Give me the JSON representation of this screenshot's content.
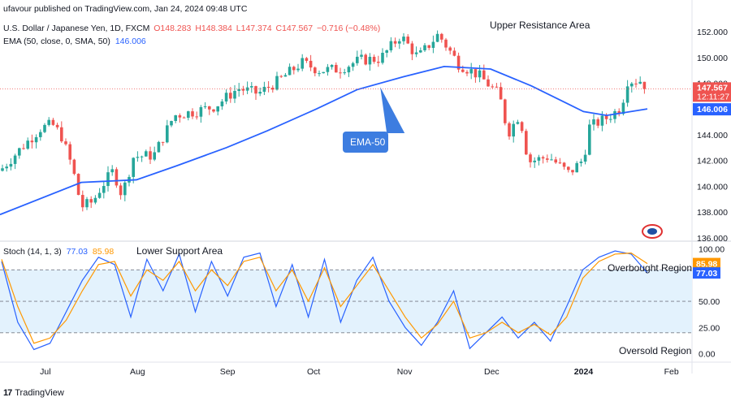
{
  "header": {
    "publisher": "ufavour published on TradingView.com, Jan 24, 2024 09:48 UTC",
    "symbol": "U.S. Dollar / Japanese Yen, 1D, FXCM",
    "open": "O148.283",
    "high": "H148.384",
    "low": "L147.374",
    "close": "C147.567",
    "change": "−0.716 (−0.48%)",
    "ema_legend": "EMA (50, close, 0, SMA, 50)",
    "ema_value": "146.006",
    "stoch_legend": "Stoch (14, 1, 3)",
    "stoch_k": "77.03",
    "stoch_d": "85.98"
  },
  "annotations": {
    "upper_resistance": "Upper Resistance Area",
    "lower_support": "Lower Support Area",
    "ema_callout": "EMA-50",
    "overbought": "Overbought Region",
    "oversold": "Oversold Region"
  },
  "price_labels": {
    "current": "147.567",
    "countdown": "12:11:27",
    "ema": "146.006"
  },
  "footer": {
    "brand": "TradingView"
  },
  "colors": {
    "up": "#26a69a",
    "down": "#ef5350",
    "ema": "#2962ff",
    "stoch_k": "#2962ff",
    "stoch_d": "#ff9800",
    "band": "#e3f2fd"
  },
  "chart_data": [
    {
      "type": "candlestick",
      "title": "U.S. Dollar / Japanese Yen, 1D, FXCM",
      "x_ticks": [
        "Jul",
        "Aug",
        "Sep",
        "Oct",
        "Nov",
        "Dec",
        "2024",
        "Feb"
      ],
      "y_ticks": [
        "152.000",
        "150.000",
        "148.000",
        "146.000",
        "144.000",
        "142.000",
        "140.000",
        "138.000",
        "136.000"
      ],
      "ylim": [
        135.8,
        153.2
      ],
      "close_series": [
        {
          "date": "2023-06-15",
          "close": 141.2
        },
        {
          "date": "2023-06-22",
          "close": 142.9
        },
        {
          "date": "2023-06-29",
          "close": 144.5
        },
        {
          "date": "2023-07-03",
          "close": 144.8
        },
        {
          "date": "2023-07-06",
          "close": 144.0
        },
        {
          "date": "2023-07-10",
          "close": 141.4
        },
        {
          "date": "2023-07-13",
          "close": 138.4
        },
        {
          "date": "2023-07-17",
          "close": 138.8
        },
        {
          "date": "2023-07-20",
          "close": 140.0
        },
        {
          "date": "2023-07-24",
          "close": 141.2
        },
        {
          "date": "2023-07-27",
          "close": 139.3
        },
        {
          "date": "2023-07-31",
          "close": 142.3
        },
        {
          "date": "2023-08-07",
          "close": 142.4
        },
        {
          "date": "2023-08-14",
          "close": 145.5
        },
        {
          "date": "2023-08-21",
          "close": 145.8
        },
        {
          "date": "2023-08-28",
          "close": 146.2
        },
        {
          "date": "2023-09-05",
          "close": 147.6
        },
        {
          "date": "2023-09-12",
          "close": 147.2
        },
        {
          "date": "2023-09-19",
          "close": 148.2
        },
        {
          "date": "2023-09-27",
          "close": 149.6
        },
        {
          "date": "2023-10-03",
          "close": 149.0
        },
        {
          "date": "2023-10-10",
          "close": 149.1
        },
        {
          "date": "2023-10-17",
          "close": 149.8
        },
        {
          "date": "2023-10-24",
          "close": 149.9
        },
        {
          "date": "2023-10-31",
          "close": 151.7
        },
        {
          "date": "2023-11-06",
          "close": 150.0
        },
        {
          "date": "2023-11-13",
          "close": 151.8
        },
        {
          "date": "2023-11-20",
          "close": 149.5
        },
        {
          "date": "2023-11-27",
          "close": 148.6
        },
        {
          "date": "2023-12-04",
          "close": 147.1
        },
        {
          "date": "2023-12-07",
          "close": 144.1
        },
        {
          "date": "2023-12-11",
          "close": 145.6
        },
        {
          "date": "2023-12-14",
          "close": 141.9
        },
        {
          "date": "2023-12-21",
          "close": 142.3
        },
        {
          "date": "2023-12-28",
          "close": 141.0
        },
        {
          "date": "2024-01-02",
          "close": 142.1
        },
        {
          "date": "2024-01-04",
          "close": 144.6
        },
        {
          "date": "2024-01-10",
          "close": 145.3
        },
        {
          "date": "2024-01-15",
          "close": 146.1
        },
        {
          "date": "2024-01-17",
          "close": 148.2
        },
        {
          "date": "2024-01-22",
          "close": 148.2
        },
        {
          "date": "2024-01-24",
          "close": 147.567
        }
      ],
      "ema50_series": [
        {
          "date": "2023-06-15",
          "ema": 137.8
        },
        {
          "date": "2023-07-13",
          "ema": 140.3
        },
        {
          "date": "2023-08-01",
          "ema": 140.5
        },
        {
          "date": "2023-08-15",
          "ema": 141.6
        },
        {
          "date": "2023-09-01",
          "ema": 143.0
        },
        {
          "date": "2023-09-15",
          "ema": 144.3
        },
        {
          "date": "2023-10-02",
          "ema": 146.0
        },
        {
          "date": "2023-10-16",
          "ema": 147.5
        },
        {
          "date": "2023-11-01",
          "ema": 148.5
        },
        {
          "date": "2023-11-15",
          "ema": 149.3
        },
        {
          "date": "2023-12-01",
          "ema": 149.1
        },
        {
          "date": "2023-12-15",
          "ema": 147.8
        },
        {
          "date": "2024-01-02",
          "ema": 145.8
        },
        {
          "date": "2024-01-10",
          "ema": 145.5
        },
        {
          "date": "2024-01-24",
          "ema": 146.006
        }
      ]
    },
    {
      "type": "line",
      "title": "Stoch (14, 1, 3)",
      "y_ticks": [
        "100.00",
        "75.00",
        "50.00",
        "25.00",
        "0.00"
      ],
      "ylim": [
        -8,
        105
      ],
      "bands": [
        20,
        80
      ],
      "series": [
        {
          "name": "77.03",
          "values": [
            88,
            30,
            4,
            10,
            40,
            70,
            92,
            85,
            35,
            90,
            60,
            95,
            40,
            88,
            55,
            92,
            96,
            45,
            85,
            35,
            90,
            30,
            70,
            92,
            50,
            25,
            8,
            30,
            60,
            5,
            20,
            35,
            15,
            30,
            12,
            45,
            80,
            92,
            98,
            95,
            77.03
          ]
        },
        {
          "name": "85.98",
          "values": [
            90,
            45,
            10,
            15,
            32,
            60,
            85,
            88,
            55,
            80,
            70,
            88,
            60,
            80,
            65,
            88,
            92,
            60,
            80,
            50,
            82,
            45,
            65,
            85,
            60,
            35,
            15,
            28,
            50,
            15,
            20,
            30,
            20,
            28,
            18,
            35,
            72,
            88,
            95,
            96,
            85.98
          ]
        }
      ]
    }
  ]
}
